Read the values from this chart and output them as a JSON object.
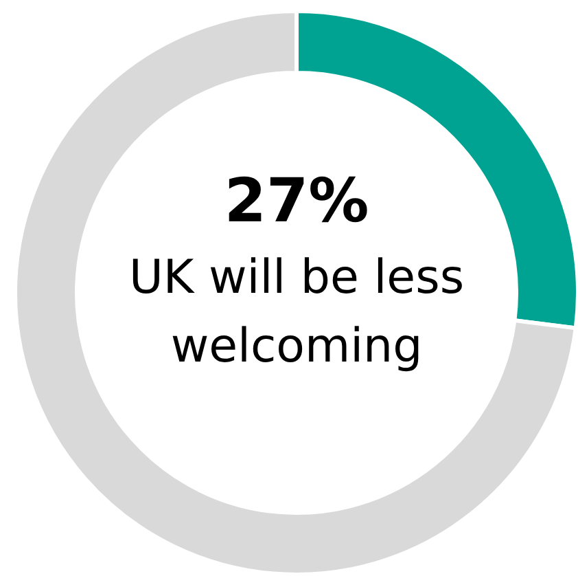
{
  "chart_data": {
    "type": "donut",
    "categories": [
      "UK will be less welcoming",
      null
    ],
    "values": [
      27,
      73
    ],
    "colors": [
      "#00a391",
      "#d9d9d9"
    ],
    "value_labels": [
      "27%",
      null
    ]
  }
}
